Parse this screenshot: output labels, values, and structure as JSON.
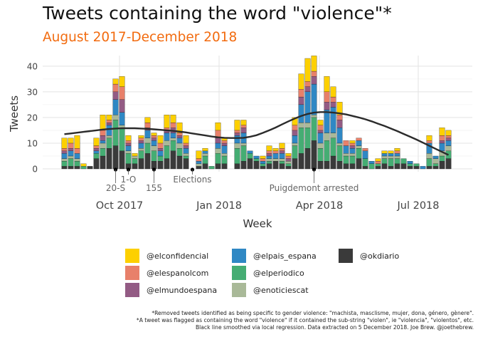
{
  "title": "Tweets containing the word \"violence\"*",
  "subtitle": "August 2017-December 2018",
  "chart_data": {
    "type": "bar",
    "stacked": true,
    "xlabel": "Week",
    "ylabel": "Tweets",
    "ylim": [
      0,
      43
    ],
    "yticks": [
      0,
      10,
      20,
      30,
      40
    ],
    "xtick_labels": [
      "Oct 2017",
      "Jan 2018",
      "Apr 2018",
      "Jul 2018"
    ],
    "grid": true,
    "legend_position": "bottom",
    "series": [
      {
        "name": "@okdiario",
        "color": "#3a3a3a",
        "values": [
          1,
          1,
          1,
          0,
          1,
          4,
          5,
          8,
          9,
          7,
          2,
          2,
          4,
          6,
          3,
          3,
          4,
          7,
          5,
          4,
          0,
          1,
          2,
          0,
          2,
          2,
          0,
          2,
          3,
          4,
          3,
          1,
          2,
          3,
          2,
          1,
          4,
          6,
          8,
          11,
          3,
          3,
          5,
          3,
          2,
          2,
          4,
          1,
          0,
          1,
          2,
          1,
          2,
          2,
          1,
          1,
          0,
          1,
          1,
          3,
          4
        ]
      },
      {
        "name": "@elperiodico",
        "color": "#45ad73",
        "values": [
          2,
          3,
          2,
          1,
          0,
          2,
          3,
          4,
          10,
          9,
          4,
          2,
          3,
          4,
          4,
          2,
          5,
          4,
          3,
          1,
          0,
          0,
          3,
          1,
          4,
          3,
          0,
          6,
          6,
          2,
          1,
          1,
          1,
          0,
          1,
          1,
          5,
          10,
          8,
          9,
          5,
          8,
          7,
          6,
          3,
          3,
          4,
          3,
          2,
          1,
          2,
          3,
          2,
          2,
          1,
          1,
          0,
          3,
          1,
          2,
          3
        ]
      },
      {
        "name": "@enoticiescat",
        "color": "#a9b998",
        "values": [
          1,
          1,
          1,
          0,
          0,
          0,
          2,
          1,
          2,
          1,
          1,
          1,
          1,
          2,
          2,
          0,
          2,
          1,
          2,
          1,
          0,
          1,
          1,
          0,
          2,
          1,
          0,
          2,
          1,
          0,
          0,
          0,
          1,
          1,
          1,
          1,
          1,
          2,
          2,
          1,
          2,
          3,
          2,
          1,
          1,
          1,
          1,
          0,
          0,
          0,
          1,
          1,
          1,
          0,
          0,
          0,
          0,
          2,
          2,
          2,
          2
        ]
      },
      {
        "name": "@elpais_espana",
        "color": "#2f88c4",
        "values": [
          2,
          2,
          2,
          0,
          0,
          1,
          1,
          4,
          6,
          5,
          2,
          0,
          2,
          3,
          2,
          2,
          3,
          2,
          2,
          2,
          0,
          1,
          1,
          0,
          2,
          3,
          0,
          3,
          4,
          1,
          1,
          1,
          1,
          2,
          2,
          0,
          3,
          7,
          12,
          12,
          4,
          9,
          10,
          6,
          3,
          2,
          2,
          3,
          1,
          0,
          1,
          1,
          1,
          0,
          1,
          0,
          1,
          4,
          1,
          3,
          2
        ]
      },
      {
        "name": "@elmundoespana",
        "color": "#935b84",
        "values": [
          1,
          1,
          0,
          0,
          0,
          1,
          2,
          1,
          3,
          5,
          1,
          0,
          1,
          1,
          1,
          1,
          1,
          2,
          1,
          1,
          0,
          0,
          0,
          0,
          2,
          1,
          0,
          1,
          2,
          0,
          0,
          0,
          1,
          0,
          1,
          1,
          2,
          3,
          2,
          3,
          1,
          3,
          2,
          3,
          0,
          1,
          0,
          0,
          0,
          0,
          0,
          0,
          0,
          0,
          0,
          0,
          0,
          0,
          0,
          1,
          1
        ]
      },
      {
        "name": "@elespanolcom",
        "color": "#e8806a",
        "values": [
          1,
          2,
          2,
          0,
          0,
          1,
          2,
          1,
          3,
          5,
          1,
          0,
          1,
          2,
          1,
          2,
          1,
          2,
          1,
          1,
          0,
          1,
          0,
          0,
          3,
          1,
          0,
          1,
          1,
          0,
          0,
          1,
          1,
          1,
          1,
          1,
          2,
          3,
          2,
          2,
          2,
          4,
          2,
          2,
          2,
          1,
          1,
          1,
          0,
          1,
          0,
          0,
          1,
          0,
          0,
          0,
          0,
          1,
          0,
          2,
          1
        ]
      },
      {
        "name": "@elconfidencial",
        "color": "#fdd000",
        "values": [
          4,
          2,
          5,
          1,
          0,
          3,
          6,
          2,
          2,
          4,
          2,
          1,
          1,
          2,
          1,
          3,
          5,
          3,
          4,
          3,
          0,
          3,
          1,
          0,
          3,
          1,
          0,
          4,
          2,
          0,
          0,
          1,
          2,
          1,
          2,
          1,
          3,
          6,
          9,
          6,
          2,
          6,
          4,
          5,
          0,
          1,
          0,
          0,
          0,
          1,
          1,
          1,
          1,
          0,
          0,
          0,
          0,
          2,
          0,
          3,
          2
        ]
      }
    ],
    "smooth_line": [
      13.5,
      13.8,
      14.1,
      14.4,
      14.7,
      15,
      15.3,
      15.5,
      15.7,
      15.8,
      15.8,
      15.8,
      15.7,
      15.6,
      15.4,
      15.2,
      15,
      14.8,
      14.5,
      14.2,
      13.8,
      13.4,
      13,
      12.6,
      12.3,
      12.1,
      12,
      12,
      12.1,
      12.5,
      13.1,
      14,
      15,
      16.1,
      17.3,
      18.5,
      19.6,
      20.6,
      21.4,
      21.9,
      22.1,
      22.1,
      21.9,
      21.6,
      21.2,
      20.6,
      20,
      19.3,
      18.5,
      17.6,
      16.7,
      15.7,
      14.7,
      13.6,
      12.5,
      11.4,
      10.2,
      9,
      7.8,
      6.6,
      5.4
    ],
    "annotations": [
      {
        "label": "20-S",
        "week": 8
      },
      {
        "label": "1-O",
        "week": 10
      },
      {
        "label": "155",
        "week": 14
      },
      {
        "label": "Elections",
        "week": 20
      },
      {
        "label": "Puigdemont arrested",
        "week": 39
      }
    ]
  },
  "legend": {
    "items": [
      {
        "name": "@elconfidencial",
        "color": "#fdd000"
      },
      {
        "name": "@elespanolcom",
        "color": "#e8806a"
      },
      {
        "name": "@elmundoespana",
        "color": "#935b84"
      },
      {
        "name": "@elpais_espana",
        "color": "#2f88c4"
      },
      {
        "name": "@elperiodico",
        "color": "#45ad73"
      },
      {
        "name": "@enoticiescat",
        "color": "#a9b998"
      },
      {
        "name": "@okdiario",
        "color": "#3a3a3a"
      }
    ]
  },
  "footnotes": [
    "*Removed tweets identified as being specific to gender violence: \"machista, masclisme, mujer, dona, género, gènere\".",
    "*A tweet was flagged as containing the word \"violence\" if it contained the sub-string \"violen\", ie \"violencia\", \"violentos\", etc.",
    "Black line smoothed via local regression. Data extracted on 5 December 2018. Joe Brew. @joethebrew."
  ]
}
